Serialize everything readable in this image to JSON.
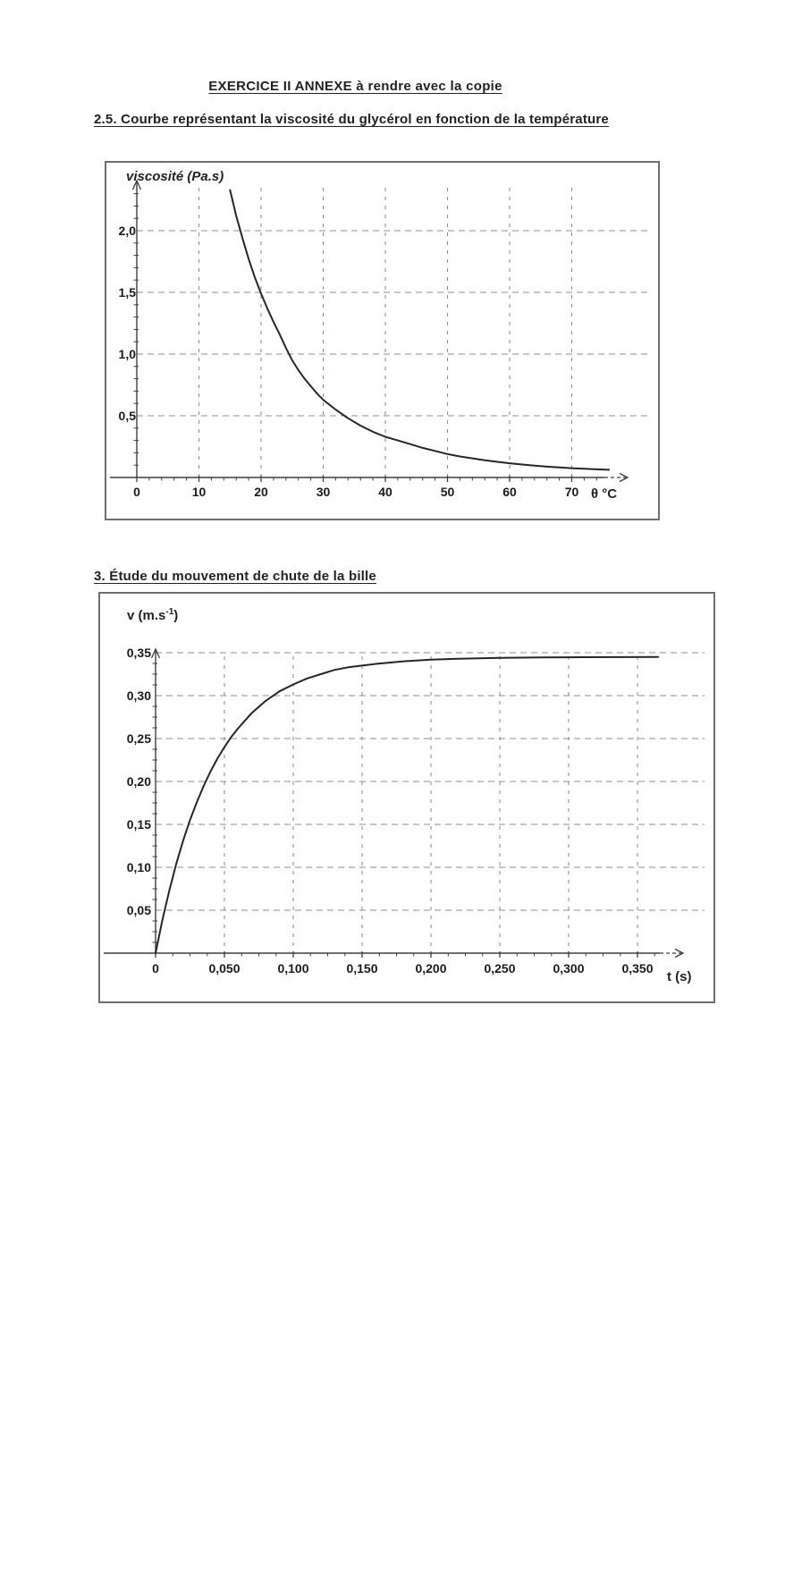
{
  "page": {
    "title": "EXERCICE II ANNEXE à rendre avec la copie",
    "sections": [
      {
        "heading": "2.5. Courbe représentant la viscosité du glycérol en fonction de la température"
      },
      {
        "heading": "3. Étude du mouvement de chute de la bille"
      }
    ]
  },
  "colors": {
    "background": "#ffffff",
    "text": "#1b1b1b",
    "grid": "#8f8f8f",
    "axis": "#3f3f3f",
    "curve": "#262626",
    "frame": "#6f6f6f"
  },
  "chart_data": [
    {
      "type": "line",
      "name": "viscosite-glycerol-vs-temperature",
      "title": "",
      "ylabel": "viscosité (Pa.s)",
      "xlabel": "θ °C",
      "xlim": [
        0,
        79
      ],
      "ylim": [
        0,
        2.41
      ],
      "grid": "dashed",
      "legend": "none",
      "x_ticks": [
        0,
        10,
        20,
        30,
        40,
        50,
        60,
        70
      ],
      "x_tick_labels": [
        "0",
        "10",
        "20",
        "30",
        "40",
        "50",
        "60",
        "70"
      ],
      "y_ticks": [
        0.5,
        1.0,
        1.5,
        2.0
      ],
      "y_tick_labels": [
        "0,5",
        "1,0",
        "1,5",
        "2,0"
      ],
      "x_minor_step": 2,
      "y_minor_step": 0.1,
      "series": [
        {
          "name": "viscosité du glycérol",
          "points": [
            [
              15,
              2.33
            ],
            [
              16,
              2.12
            ],
            [
              17,
              1.94
            ],
            [
              18,
              1.77
            ],
            [
              19,
              1.62
            ],
            [
              20,
              1.49
            ],
            [
              21,
              1.37
            ],
            [
              22,
              1.26
            ],
            [
              23,
              1.16
            ],
            [
              24,
              1.05
            ],
            [
              25,
              0.95
            ],
            [
              26,
              0.87
            ],
            [
              27,
              0.8
            ],
            [
              28,
              0.74
            ],
            [
              29,
              0.68
            ],
            [
              30,
              0.63
            ],
            [
              32,
              0.55
            ],
            [
              34,
              0.48
            ],
            [
              36,
              0.42
            ],
            [
              38,
              0.37
            ],
            [
              40,
              0.33
            ],
            [
              42,
              0.3
            ],
            [
              44,
              0.27
            ],
            [
              46,
              0.24
            ],
            [
              48,
              0.215
            ],
            [
              50,
              0.19
            ],
            [
              52,
              0.17
            ],
            [
              54,
              0.155
            ],
            [
              56,
              0.14
            ],
            [
              58,
              0.127
            ],
            [
              60,
              0.115
            ],
            [
              62,
              0.105
            ],
            [
              64,
              0.096
            ],
            [
              66,
              0.088
            ],
            [
              68,
              0.081
            ],
            [
              70,
              0.075
            ],
            [
              72,
              0.07
            ],
            [
              74,
              0.066
            ],
            [
              76,
              0.062
            ]
          ]
        }
      ]
    },
    {
      "type": "line",
      "name": "vitesse-bille-vs-temps",
      "title": "",
      "ylabel_pre": "v (m.s",
      "ylabel_sup": "-1",
      "ylabel_post": ")",
      "xlabel": "t (s)",
      "xlim": [
        0,
        0.383
      ],
      "ylim": [
        0,
        0.354
      ],
      "grid": "dashed",
      "legend": "none",
      "x_ticks": [
        0,
        0.05,
        0.1,
        0.15,
        0.2,
        0.25,
        0.3,
        0.35
      ],
      "x_tick_labels": [
        "0",
        "0,050",
        "0,100",
        "0,150",
        "0,200",
        "0,250",
        "0,300",
        "0,350"
      ],
      "y_ticks": [
        0.05,
        0.1,
        0.15,
        0.2,
        0.25,
        0.3,
        0.35
      ],
      "y_tick_labels": [
        "0,05",
        "0,10",
        "0,15",
        "0,20",
        "0,25",
        "0,30",
        "0,35"
      ],
      "x_minor_step": 0.0125,
      "y_minor_step": 0.0125,
      "limit_speed": 0.345,
      "series": [
        {
          "name": "vitesse de chute de la bille",
          "points": [
            [
              0,
              0
            ],
            [
              0.005,
              0.039
            ],
            [
              0.01,
              0.073
            ],
            [
              0.015,
              0.104
            ],
            [
              0.02,
              0.131
            ],
            [
              0.025,
              0.155
            ],
            [
              0.03,
              0.176
            ],
            [
              0.035,
              0.195
            ],
            [
              0.04,
              0.212
            ],
            [
              0.045,
              0.227
            ],
            [
              0.05,
              0.24
            ],
            [
              0.055,
              0.252
            ],
            [
              0.06,
              0.262
            ],
            [
              0.065,
              0.271
            ],
            [
              0.07,
              0.28
            ],
            [
              0.075,
              0.287
            ],
            [
              0.08,
              0.294
            ],
            [
              0.09,
              0.305
            ],
            [
              0.1,
              0.313
            ],
            [
              0.11,
              0.32
            ],
            [
              0.12,
              0.325
            ],
            [
              0.13,
              0.33
            ],
            [
              0.14,
              0.333
            ],
            [
              0.15,
              0.335
            ],
            [
              0.16,
              0.337
            ],
            [
              0.18,
              0.34
            ],
            [
              0.2,
              0.342
            ],
            [
              0.22,
              0.343
            ],
            [
              0.25,
              0.344
            ],
            [
              0.28,
              0.3446
            ],
            [
              0.31,
              0.3448
            ],
            [
              0.34,
              0.3449
            ],
            [
              0.365,
              0.345
            ]
          ]
        }
      ]
    }
  ]
}
